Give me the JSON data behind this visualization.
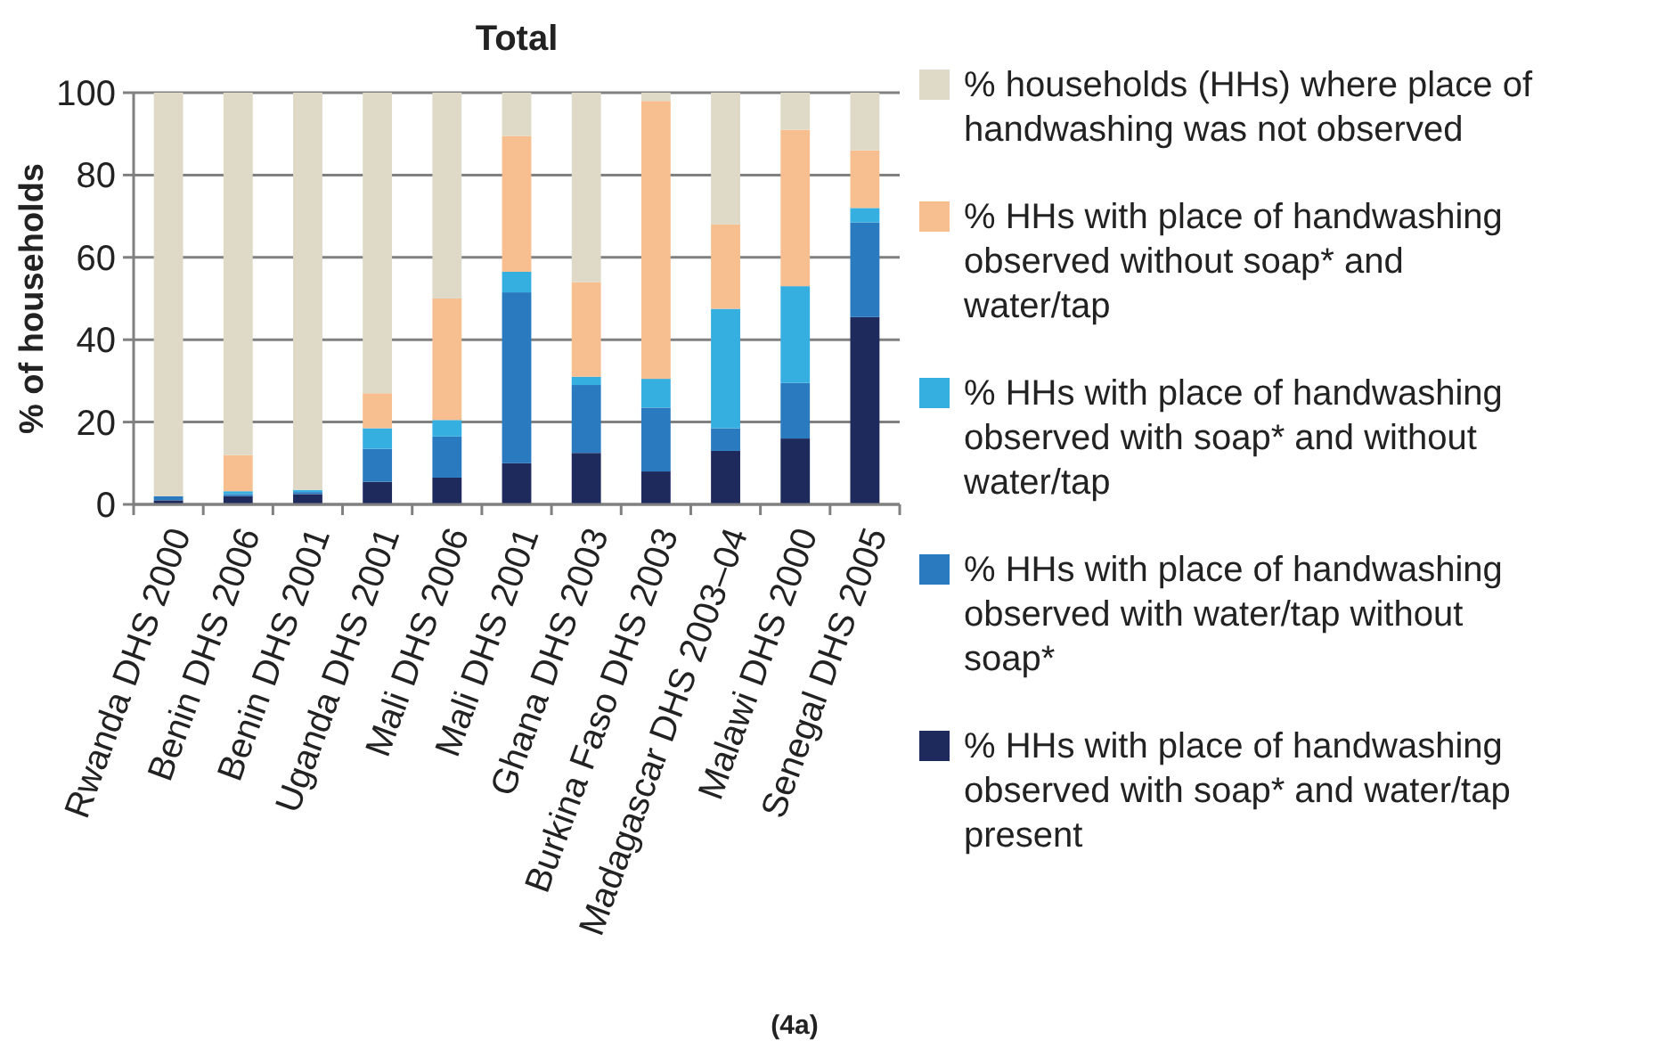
{
  "chart_data": {
    "type": "bar",
    "stacked": true,
    "title": "Total",
    "ylabel": "% of households",
    "categories": [
      "Rwanda DHS 2000",
      "Benin DHS 2006",
      "Benin DHS 2001",
      "Uganda DHS 2001",
      "Mali DHS 2006",
      "Mali DHS 2001",
      "Ghana DHS 2003",
      "Burkina Faso DHS 2003",
      "Madagascar DHS 2003–04",
      "Malawi DHS 2000",
      "Senegal DHS 2005"
    ],
    "series": [
      {
        "name": "% HHs with place of handwashing observed with soap* and water/tap present",
        "color": "#1f2a5c",
        "values": [
          1,
          2,
          2.5,
          5.5,
          6.5,
          10,
          12.5,
          8,
          13,
          16,
          45.5
        ]
      },
      {
        "name": "% HHs with place of handwashing observed with water/tap without soap*",
        "color": "#2a7ac0",
        "values": [
          1,
          0.5,
          0.5,
          8,
          10,
          41.5,
          16.5,
          15.5,
          5.5,
          13.5,
          23
        ]
      },
      {
        "name": "% HHs with place of handwashing observed with soap* and without water/tap",
        "color": "#35aee0",
        "values": [
          0,
          0.7,
          0.5,
          5,
          4,
          5,
          2,
          7,
          29,
          23.5,
          3.5
        ]
      },
      {
        "name": "% HHs with place of handwashing observed without soap* and water/tap",
        "color": "#f7bf8f",
        "values": [
          0,
          8.8,
          0,
          8.5,
          29.5,
          33,
          23,
          67.5,
          20.5,
          38,
          14
        ]
      },
      {
        "name": "% households (HHs) where place of handwashing was not observed",
        "color": "#dedac7",
        "values": [
          98,
          88,
          96.5,
          73,
          50,
          10.5,
          46,
          2,
          32,
          9,
          14
        ]
      }
    ],
    "ylim": [
      0,
      100
    ],
    "yticks": [
      0,
      20,
      40,
      60,
      80,
      100
    ],
    "grid": "y",
    "legend": "right",
    "annotations": [
      "(4a)"
    ]
  }
}
